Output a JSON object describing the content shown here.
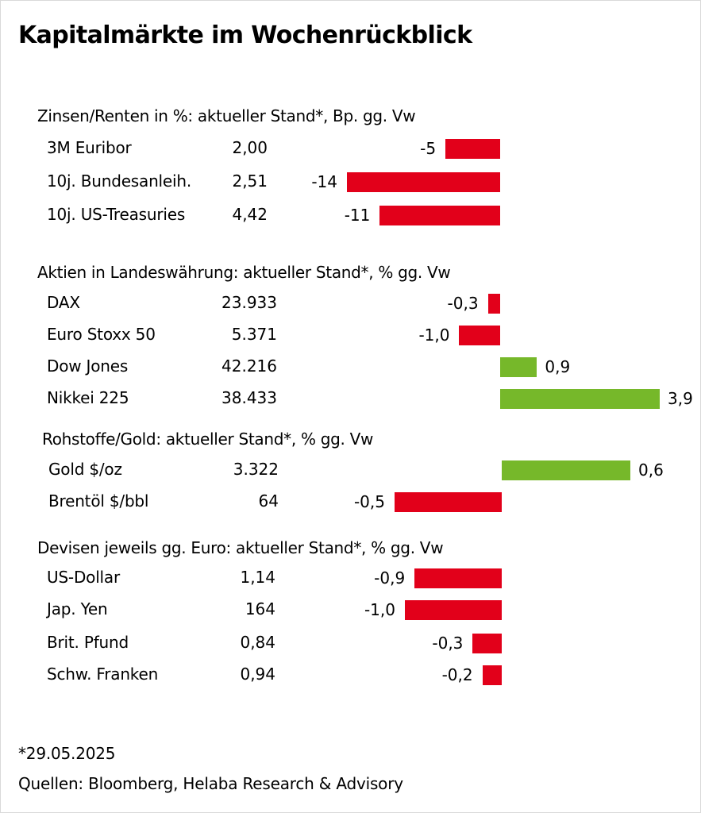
{
  "title": "Kapitalmärkte im Wochenrückblick",
  "chart_data": {
    "type": "bar",
    "sections": [
      {
        "title": "Zinsen/Renten in %: aktueller Stand*, Bp. gg. Vw",
        "scale_max": 14,
        "rows": [
          {
            "label": "3M Euribor",
            "value": "2,00",
            "change": -5,
            "change_label": "-5"
          },
          {
            "label": "10j. Bundesanleih.",
            "value": "2,51",
            "change": -14,
            "change_label": "-14"
          },
          {
            "label": "10j. US-Treasuries",
            "value": "4,42",
            "change": -11,
            "change_label": "-11"
          }
        ]
      },
      {
        "title": "Aktien in Landeswährung: aktueller Stand*, % gg. Vw",
        "scale_max": 3.9,
        "rows": [
          {
            "label": "DAX",
            "value": "23.933",
            "change": -0.3,
            "change_label": "-0,3"
          },
          {
            "label": "Euro Stoxx 50",
            "value": "5.371",
            "change": -1.0,
            "change_label": "-1,0"
          },
          {
            "label": "Dow Jones",
            "value": "42.216",
            "change": 0.9,
            "change_label": "0,9"
          },
          {
            "label": "Nikkei 225",
            "value": "38.433",
            "change": 3.9,
            "change_label": "3,9"
          }
        ]
      },
      {
        "title": "Rohstoffe/Gold: aktueller Stand*, % gg. Vw",
        "scale_max": 0.6,
        "rows": [
          {
            "label": "Gold $/oz",
            "value": "3.322",
            "change": 0.6,
            "change_label": "0,6"
          },
          {
            "label": "Brentöl $/bbl",
            "value": "64",
            "change": -0.5,
            "change_label": "-0,5"
          }
        ]
      },
      {
        "title": "Devisen jeweils gg. Euro: aktueller Stand*, % gg. Vw",
        "scale_max": 1.0,
        "rows": [
          {
            "label": "US-Dollar",
            "value": "1,14",
            "change": -0.9,
            "change_label": "-0,9"
          },
          {
            "label": "Jap. Yen",
            "value": "164",
            "change": -1.0,
            "change_label": "-1,0"
          },
          {
            "label": "Brit. Pfund",
            "value": "0,84",
            "change": -0.3,
            "change_label": "-0,3"
          },
          {
            "label": "Schw. Franken",
            "value": "0,94",
            "change": -0.2,
            "change_label": "-0,2"
          }
        ]
      }
    ]
  },
  "colors": {
    "negative": "#e2001a",
    "positive": "#76b82a"
  },
  "footnote": "*29.05.2025",
  "sources": "Quellen: Bloomberg, Helaba Research & Advisory"
}
